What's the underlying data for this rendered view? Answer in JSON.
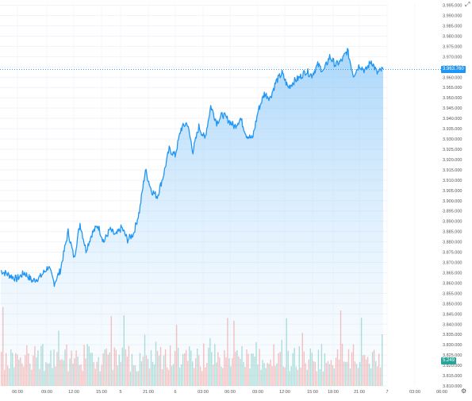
{
  "chart_data": {
    "type": "area",
    "title": "",
    "xlabel": "",
    "ylabel": "",
    "ylim": [
      3.81,
      3.996
    ],
    "price_ticks": [
      "3.995.000",
      "3.990.000",
      "3.985.000",
      "3.980.000",
      "3.975.000",
      "3.970.000",
      "3.965.000",
      "3.960.000",
      "3.955.000",
      "3.950.000",
      "3.945.000",
      "3.940.000",
      "3.935.000",
      "3.930.000",
      "3.925.000",
      "3.920.000",
      "3.915.000",
      "3.910.000",
      "3.905.000",
      "3.900.000",
      "3.895.000",
      "3.890.000",
      "3.885.000",
      "3.880.000",
      "3.875.000",
      "3.870.000",
      "3.865.000",
      "3.860.000",
      "3.855.000",
      "3.850.000",
      "3.845.000",
      "3.840.000",
      "3.835.000",
      "3.830.000",
      "3.825.000",
      "3.820.000",
      "3.815.000",
      "3.810.000"
    ],
    "time_ticks": [
      "06:00",
      "09:00",
      "12:00",
      "15:00",
      "5",
      "21:00",
      "6",
      "03:00",
      "06:00",
      "09:00",
      "12:00",
      "15:00",
      "18:00",
      "21:00",
      "7",
      "03:00",
      "06:00"
    ],
    "last_price": 3.9638,
    "last_price_label": "3.963.760",
    "volume_label": "5.249",
    "price_keypoints": [
      [
        0,
        3.866
      ],
      [
        4,
        3.864
      ],
      [
        8,
        3.862
      ],
      [
        12,
        3.865
      ],
      [
        16,
        3.861
      ],
      [
        20,
        3.863
      ],
      [
        24,
        3.868
      ],
      [
        27,
        3.86
      ],
      [
        30,
        3.866
      ],
      [
        34,
        3.885
      ],
      [
        37,
        3.872
      ],
      [
        40,
        3.889
      ],
      [
        43,
        3.876
      ],
      [
        46,
        3.884
      ],
      [
        49,
        3.888
      ],
      [
        52,
        3.88
      ],
      [
        55,
        3.886
      ],
      [
        58,
        3.883
      ],
      [
        61,
        3.887
      ],
      [
        64,
        3.881
      ],
      [
        67,
        3.884
      ],
      [
        70,
        3.895
      ],
      [
        73,
        3.915
      ],
      [
        76,
        3.905
      ],
      [
        79,
        3.902
      ],
      [
        82,
        3.912
      ],
      [
        85,
        3.925
      ],
      [
        88,
        3.922
      ],
      [
        91,
        3.935
      ],
      [
        94,
        3.938
      ],
      [
        97,
        3.924
      ],
      [
        100,
        3.936
      ],
      [
        103,
        3.93
      ],
      [
        106,
        3.946
      ],
      [
        109,
        3.938
      ],
      [
        112,
        3.942
      ],
      [
        115,
        3.939
      ],
      [
        118,
        3.936
      ],
      [
        121,
        3.94
      ],
      [
        124,
        3.932
      ],
      [
        127,
        3.93
      ],
      [
        130,
        3.944
      ],
      [
        133,
        3.952
      ],
      [
        136,
        3.95
      ],
      [
        139,
        3.958
      ],
      [
        142,
        3.962
      ],
      [
        145,
        3.955
      ],
      [
        148,
        3.958
      ],
      [
        151,
        3.96
      ],
      [
        154,
        3.963
      ],
      [
        157,
        3.961
      ],
      [
        160,
        3.966
      ],
      [
        163,
        3.963
      ],
      [
        166,
        3.97
      ],
      [
        169,
        3.966
      ],
      [
        172,
        3.968
      ],
      [
        175,
        3.973
      ],
      [
        178,
        3.961
      ],
      [
        181,
        3.966
      ],
      [
        184,
        3.963
      ],
      [
        187,
        3.968
      ],
      [
        190,
        3.962
      ],
      [
        193,
        3.964
      ]
    ],
    "grid": true,
    "legend": "none"
  }
}
